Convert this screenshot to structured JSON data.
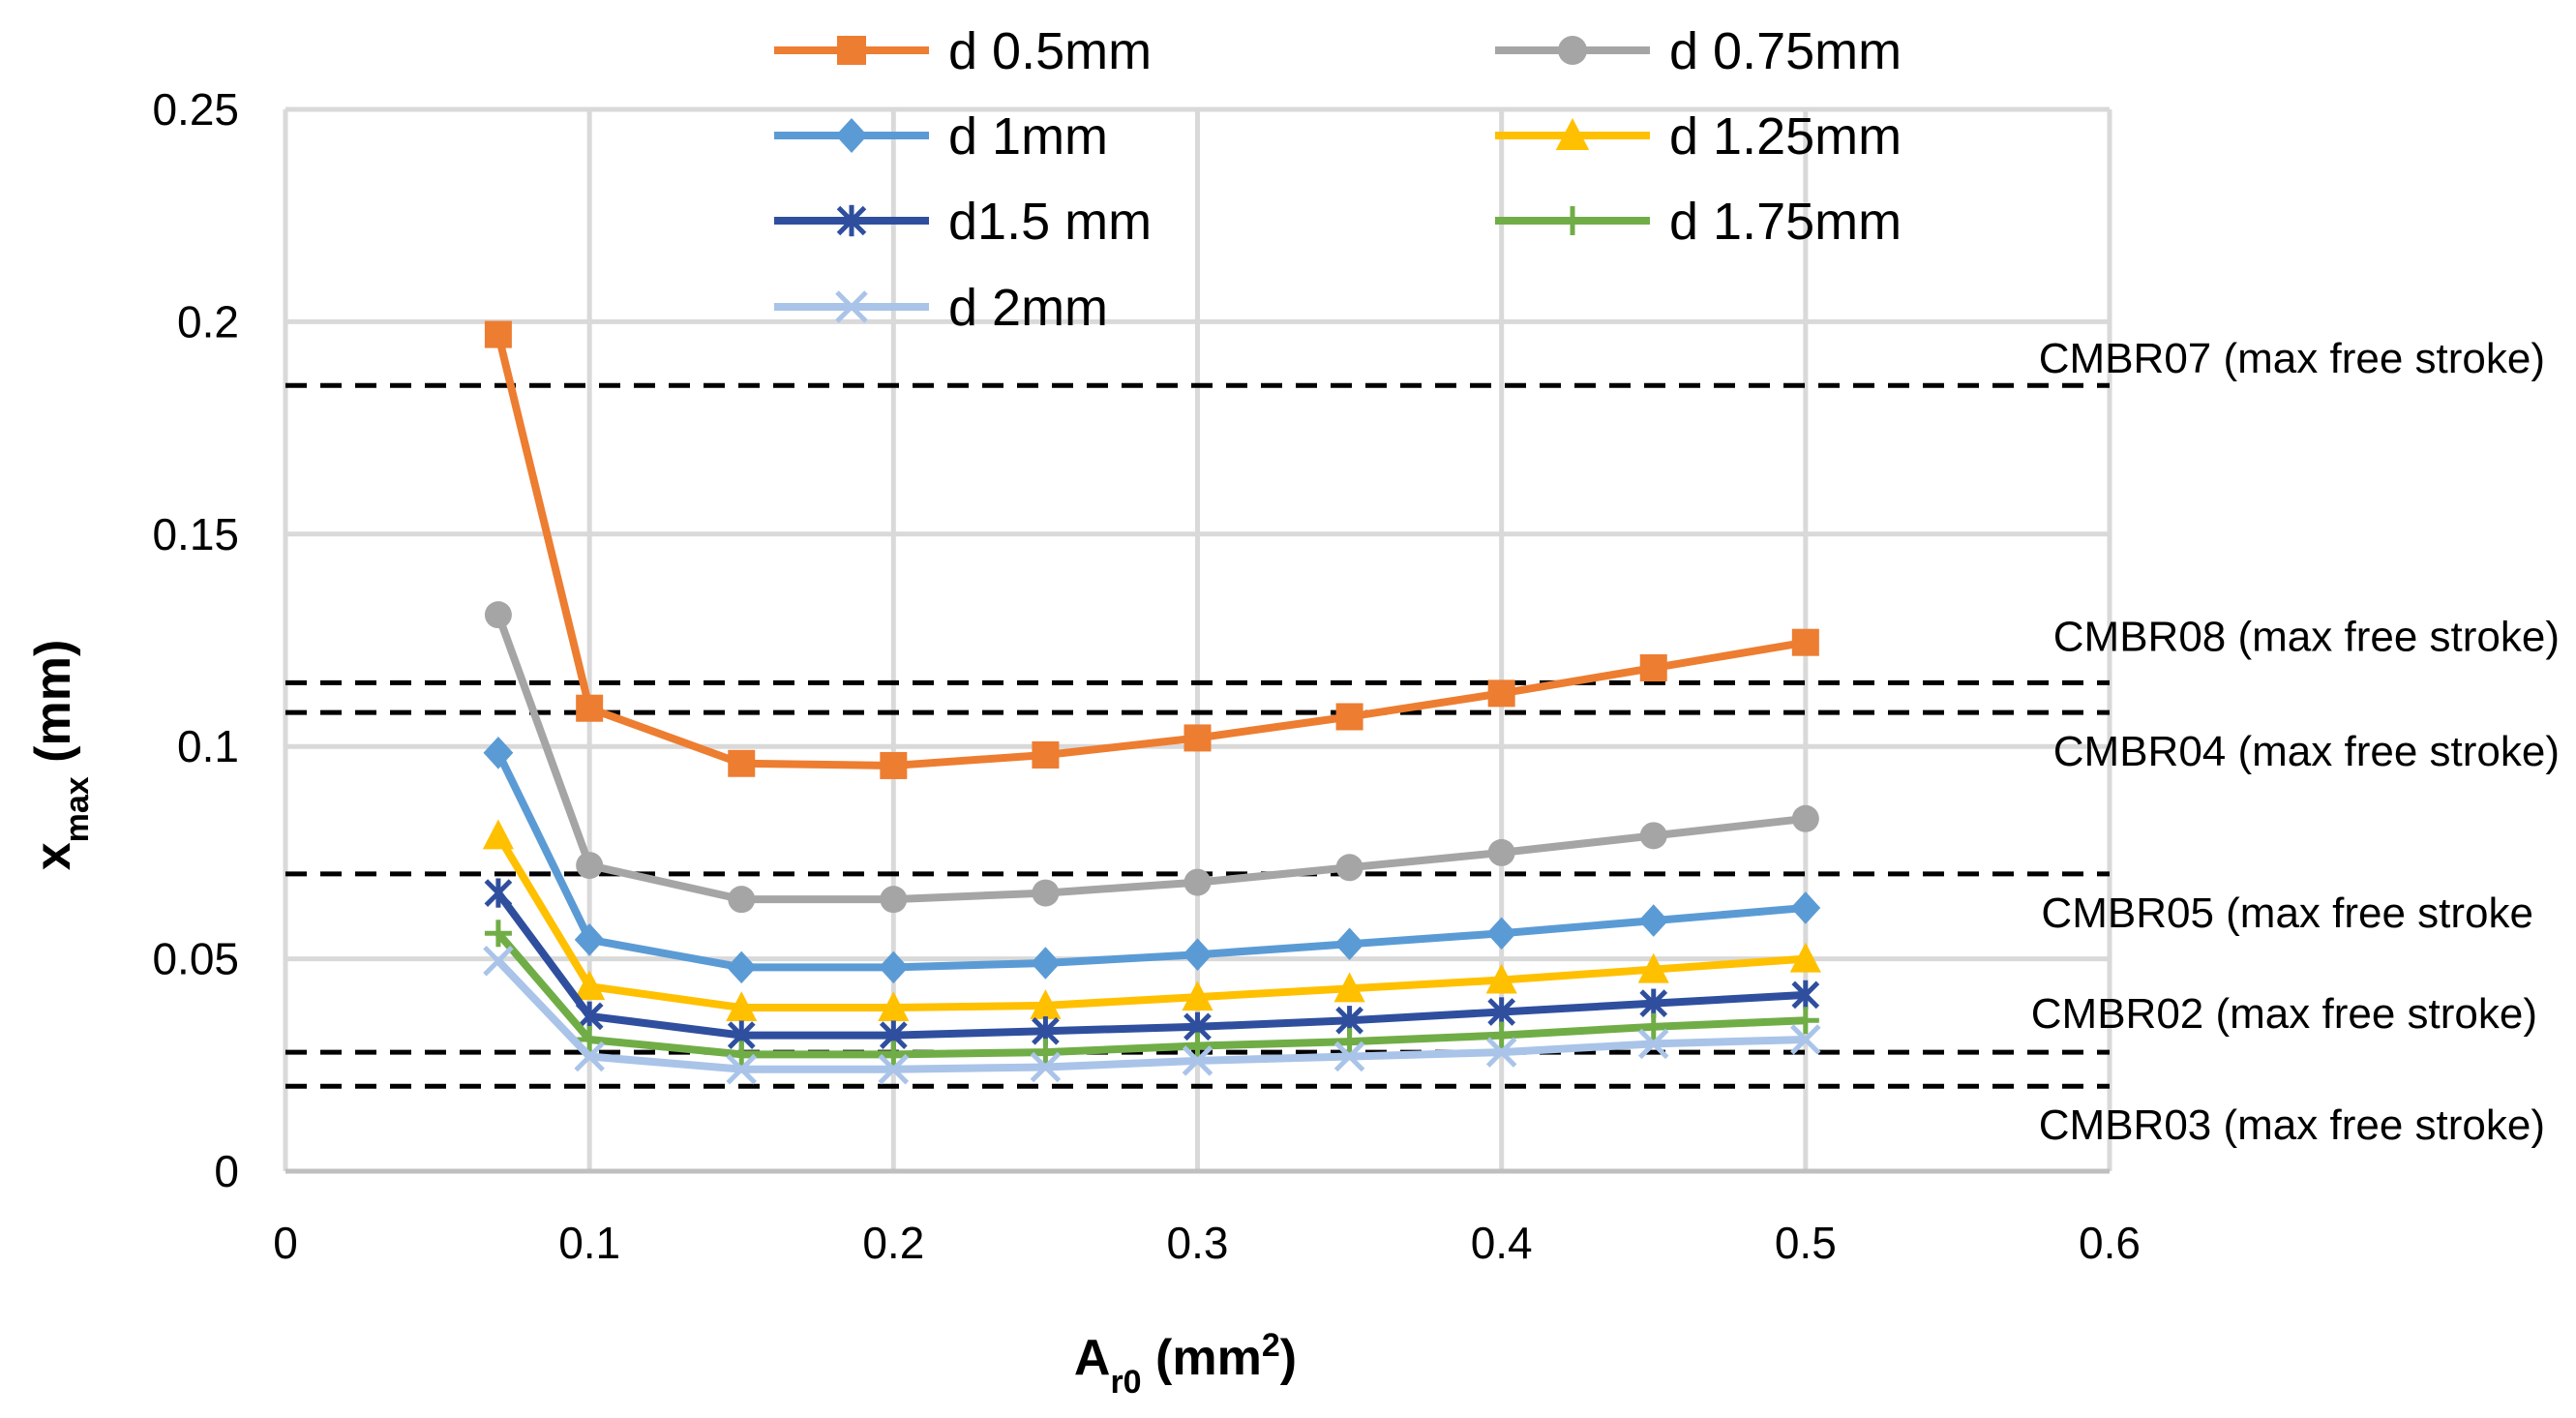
{
  "chart_data": {
    "type": "line",
    "title": "",
    "xlabel": {
      "main": "A",
      "sub": "r0",
      "rest": " (mm",
      "sup": "2",
      "end": ")"
    },
    "ylabel": {
      "main": "x",
      "sub": "max",
      "rest": " (mm)"
    },
    "xlim": [
      0,
      0.6
    ],
    "ylim": [
      0,
      0.25
    ],
    "xticks": [
      0,
      0.1,
      0.2,
      0.3,
      0.4,
      0.5,
      0.6
    ],
    "xtick_labels": [
      "0",
      "0.1",
      "0.2",
      "0.3",
      "0.4",
      "0.5",
      "0.6"
    ],
    "yticks": [
      0,
      0.05,
      0.1,
      0.15,
      0.2,
      0.25
    ],
    "ytick_labels": [
      "0",
      "0.05",
      "0.1",
      "0.15",
      "0.2",
      "0.25"
    ],
    "grid": true,
    "legend_position": "top",
    "x": [
      0.07,
      0.1,
      0.15,
      0.2,
      0.25,
      0.3,
      0.35,
      0.4,
      0.45,
      0.5
    ],
    "series": [
      {
        "name": "d 0.5mm",
        "color": "#ED7D31",
        "marker": "square",
        "values": [
          0.197,
          0.109,
          0.096,
          0.0955,
          0.098,
          0.102,
          0.107,
          0.1125,
          0.1185,
          0.1245
        ]
      },
      {
        "name": "d 0.75mm",
        "color": "#A5A5A5",
        "marker": "circle",
        "values": [
          0.131,
          0.072,
          0.064,
          0.064,
          0.0655,
          0.068,
          0.0715,
          0.075,
          0.079,
          0.083
        ]
      },
      {
        "name": "d 1mm",
        "color": "#5B9BD5",
        "marker": "diamond",
        "values": [
          0.0985,
          0.0545,
          0.048,
          0.048,
          0.049,
          0.051,
          0.0535,
          0.056,
          0.059,
          0.062
        ]
      },
      {
        "name": "d 1.25mm",
        "color": "#FFC000",
        "marker": "triangle",
        "values": [
          0.079,
          0.0435,
          0.0385,
          0.0385,
          0.039,
          0.041,
          0.043,
          0.045,
          0.0475,
          0.05
        ]
      },
      {
        "name": "d1.5 mm",
        "color": "#2F4F9E",
        "marker": "star",
        "values": [
          0.0655,
          0.0365,
          0.032,
          0.032,
          0.033,
          0.034,
          0.0355,
          0.0375,
          0.0395,
          0.0415
        ]
      },
      {
        "name": "d 1.75mm",
        "color": "#70AD47",
        "marker": "plus",
        "values": [
          0.056,
          0.031,
          0.0275,
          0.0275,
          0.028,
          0.0295,
          0.0305,
          0.032,
          0.034,
          0.0355
        ]
      },
      {
        "name": "d 2mm",
        "color": "#A9C4E8",
        "marker": "x",
        "values": [
          0.0495,
          0.027,
          0.024,
          0.024,
          0.0245,
          0.026,
          0.027,
          0.028,
          0.03,
          0.031
        ]
      }
    ],
    "reference_lines": [
      {
        "label": "CMBR07 (max free stroke)",
        "value": 0.185
      },
      {
        "label": "CMBR08 (max free stroke)",
        "value": 0.115
      },
      {
        "label": "CMBR04 (max free stroke)",
        "value": 0.108
      },
      {
        "label": "CMBR05 (max free stroke",
        "value": 0.07
      },
      {
        "label": "CMBR02 (max free stroke)",
        "value": 0.028
      },
      {
        "label": "CMBR03 (max free stroke)",
        "value": 0.02
      }
    ]
  }
}
